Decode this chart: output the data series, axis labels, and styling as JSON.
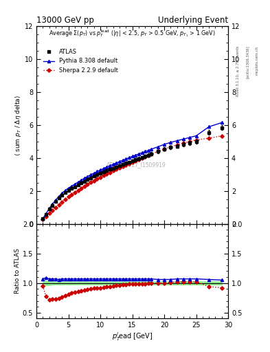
{
  "title_left": "13000 GeV pp",
  "title_right": "Underlying Event",
  "ylabel_main": "⟨ sum p_T / Δη delta⟩",
  "ylabel_ratio": "Ratio to ATLAS",
  "xlabel": "p$_T^l$ead [GeV]",
  "annotation": "ATLAS_2017_I1509919",
  "rivet_label": "Rivet 3.1.10, ≥ 2.7M events",
  "arxiv_label": "[arXiv:1306.3436]",
  "mcplots_label": "mcplots.cern.ch",
  "atlas_x": [
    1.0,
    1.5,
    2.0,
    2.5,
    3.0,
    3.5,
    4.0,
    4.5,
    5.0,
    5.5,
    6.0,
    6.5,
    7.0,
    7.5,
    8.0,
    8.5,
    9.0,
    9.5,
    10.0,
    10.5,
    11.0,
    11.5,
    12.0,
    12.5,
    13.0,
    13.5,
    14.0,
    14.5,
    15.0,
    15.5,
    16.0,
    16.5,
    17.0,
    17.5,
    18.0,
    19.0,
    20.0,
    21.0,
    22.0,
    23.0,
    24.0,
    25.0,
    27.0,
    29.0
  ],
  "atlas_y": [
    0.3,
    0.57,
    0.88,
    1.12,
    1.35,
    1.57,
    1.74,
    1.9,
    2.03,
    2.15,
    2.25,
    2.36,
    2.47,
    2.58,
    2.69,
    2.79,
    2.89,
    2.98,
    3.07,
    3.15,
    3.23,
    3.31,
    3.38,
    3.46,
    3.53,
    3.6,
    3.68,
    3.75,
    3.82,
    3.89,
    3.97,
    4.03,
    4.1,
    4.17,
    4.25,
    4.4,
    4.55,
    4.65,
    4.72,
    4.82,
    4.9,
    5.0,
    5.55,
    5.85
  ],
  "atlas_yerr": [
    0.02,
    0.02,
    0.03,
    0.03,
    0.03,
    0.04,
    0.04,
    0.04,
    0.05,
    0.05,
    0.05,
    0.05,
    0.05,
    0.06,
    0.06,
    0.06,
    0.06,
    0.07,
    0.07,
    0.07,
    0.07,
    0.07,
    0.08,
    0.08,
    0.08,
    0.08,
    0.09,
    0.09,
    0.09,
    0.09,
    0.09,
    0.09,
    0.1,
    0.1,
    0.1,
    0.1,
    0.11,
    0.11,
    0.12,
    0.12,
    0.12,
    0.13,
    0.14,
    0.16
  ],
  "pythia_x": [
    1.0,
    1.5,
    2.0,
    2.5,
    3.0,
    3.5,
    4.0,
    4.5,
    5.0,
    5.5,
    6.0,
    6.5,
    7.0,
    7.5,
    8.0,
    8.5,
    9.0,
    9.5,
    10.0,
    10.5,
    11.0,
    11.5,
    12.0,
    12.5,
    13.0,
    13.5,
    14.0,
    14.5,
    15.0,
    15.5,
    16.0,
    16.5,
    17.0,
    17.5,
    18.0,
    19.0,
    20.0,
    21.0,
    22.0,
    23.0,
    24.0,
    25.0,
    27.0,
    29.0
  ],
  "pythia_y": [
    0.32,
    0.62,
    0.94,
    1.2,
    1.44,
    1.67,
    1.86,
    2.03,
    2.17,
    2.29,
    2.41,
    2.53,
    2.65,
    2.77,
    2.88,
    2.98,
    3.08,
    3.18,
    3.27,
    3.36,
    3.45,
    3.53,
    3.62,
    3.7,
    3.78,
    3.86,
    3.94,
    4.02,
    4.1,
    4.17,
    4.25,
    4.32,
    4.39,
    4.46,
    4.54,
    4.68,
    4.83,
    4.95,
    5.05,
    5.15,
    5.25,
    5.35,
    5.9,
    6.15
  ],
  "pythia_yerr": [
    0.003,
    0.003,
    0.003,
    0.004,
    0.004,
    0.004,
    0.004,
    0.005,
    0.005,
    0.005,
    0.005,
    0.005,
    0.006,
    0.006,
    0.006,
    0.006,
    0.006,
    0.007,
    0.007,
    0.007,
    0.007,
    0.008,
    0.008,
    0.008,
    0.008,
    0.008,
    0.009,
    0.009,
    0.009,
    0.009,
    0.009,
    0.01,
    0.01,
    0.01,
    0.01,
    0.011,
    0.011,
    0.012,
    0.012,
    0.013,
    0.013,
    0.014,
    0.015,
    0.017
  ],
  "sherpa_x": [
    1.0,
    1.5,
    2.0,
    2.5,
    3.0,
    3.5,
    4.0,
    4.5,
    5.0,
    5.5,
    6.0,
    6.5,
    7.0,
    7.5,
    8.0,
    8.5,
    9.0,
    9.5,
    10.0,
    10.5,
    11.0,
    11.5,
    12.0,
    12.5,
    13.0,
    13.5,
    14.0,
    14.5,
    15.0,
    15.5,
    16.0,
    16.5,
    17.0,
    17.5,
    18.0,
    19.0,
    20.0,
    21.0,
    22.0,
    23.0,
    24.0,
    25.0,
    27.0,
    29.0
  ],
  "sherpa_y": [
    0.285,
    0.44,
    0.63,
    0.82,
    0.98,
    1.16,
    1.33,
    1.5,
    1.65,
    1.78,
    1.91,
    2.03,
    2.15,
    2.28,
    2.4,
    2.51,
    2.62,
    2.73,
    2.84,
    2.94,
    3.03,
    3.12,
    3.22,
    3.31,
    3.4,
    3.49,
    3.58,
    3.67,
    3.76,
    3.84,
    3.92,
    4.0,
    4.08,
    4.16,
    4.24,
    4.4,
    4.55,
    4.68,
    4.8,
    4.9,
    5.0,
    5.1,
    5.2,
    5.35
  ],
  "sherpa_yerr": [
    0.003,
    0.003,
    0.003,
    0.004,
    0.004,
    0.004,
    0.005,
    0.005,
    0.005,
    0.005,
    0.006,
    0.006,
    0.006,
    0.006,
    0.007,
    0.007,
    0.007,
    0.007,
    0.008,
    0.008,
    0.008,
    0.008,
    0.009,
    0.009,
    0.009,
    0.009,
    0.009,
    0.01,
    0.01,
    0.01,
    0.01,
    0.01,
    0.011,
    0.011,
    0.011,
    0.012,
    0.012,
    0.013,
    0.013,
    0.013,
    0.014,
    0.014,
    0.015,
    0.016
  ],
  "pythia_ratio_x": [
    1.0,
    1.5,
    2.0,
    2.5,
    3.0,
    3.5,
    4.0,
    4.5,
    5.0,
    5.5,
    6.0,
    6.5,
    7.0,
    7.5,
    8.0,
    8.5,
    9.0,
    9.5,
    10.0,
    10.5,
    11.0,
    11.5,
    12.0,
    12.5,
    13.0,
    13.5,
    14.0,
    14.5,
    15.0,
    15.5,
    16.0,
    16.5,
    17.0,
    17.5,
    18.0,
    19.0,
    20.0,
    21.0,
    22.0,
    23.0,
    24.0,
    25.0,
    27.0,
    29.0
  ],
  "pythia_ratio_y": [
    1.07,
    1.09,
    1.07,
    1.07,
    1.07,
    1.06,
    1.07,
    1.07,
    1.07,
    1.07,
    1.07,
    1.07,
    1.07,
    1.07,
    1.07,
    1.07,
    1.07,
    1.07,
    1.07,
    1.07,
    1.07,
    1.07,
    1.07,
    1.07,
    1.07,
    1.07,
    1.07,
    1.07,
    1.07,
    1.07,
    1.07,
    1.07,
    1.07,
    1.07,
    1.07,
    1.06,
    1.06,
    1.06,
    1.07,
    1.07,
    1.07,
    1.07,
    1.06,
    1.05
  ],
  "sherpa_ratio_y": [
    0.95,
    0.77,
    0.72,
    0.73,
    0.73,
    0.74,
    0.76,
    0.79,
    0.81,
    0.83,
    0.85,
    0.86,
    0.87,
    0.88,
    0.89,
    0.9,
    0.91,
    0.91,
    0.92,
    0.93,
    0.94,
    0.94,
    0.95,
    0.96,
    0.96,
    0.97,
    0.97,
    0.98,
    0.98,
    0.99,
    0.99,
    0.99,
    0.99,
    1.0,
    1.0,
    1.0,
    1.0,
    1.01,
    1.02,
    1.02,
    1.02,
    1.02,
    0.94,
    0.92
  ],
  "atlas_color": "#000000",
  "pythia_color": "#0000cc",
  "sherpa_color": "#cc0000",
  "ratio_band_color": "#90ee90",
  "xlim": [
    0,
    30
  ],
  "ylim_main": [
    0,
    12
  ],
  "ylim_ratio": [
    0.4,
    2.0
  ],
  "yticks_main": [
    0,
    2,
    4,
    6,
    8,
    10,
    12
  ],
  "yticks_ratio": [
    0.5,
    1.0,
    1.5,
    2.0
  ],
  "xticks": [
    0,
    5,
    10,
    15,
    20,
    25,
    30
  ]
}
